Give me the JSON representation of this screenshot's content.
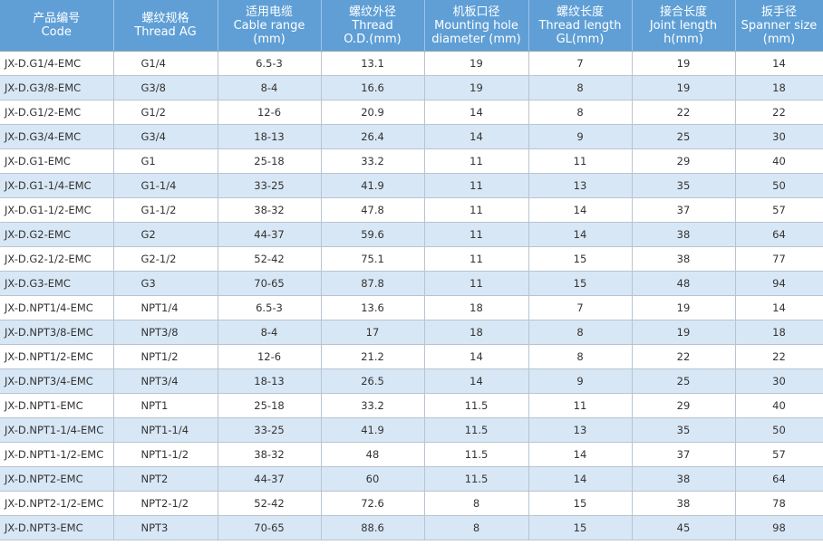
{
  "table": {
    "header": [
      [
        "产品编号",
        "Code"
      ],
      [
        "螺纹规格",
        "Thread  AG"
      ],
      [
        "适用电缆",
        "Cable range",
        "(mm)"
      ],
      [
        "螺纹外径",
        "Thread",
        "O.D.(mm)"
      ],
      [
        "机板口径",
        "Mounting hole",
        "diameter (mm)"
      ],
      [
        "螺纹长度",
        "Thread length",
        "GL(mm)"
      ],
      [
        "接合长度",
        "Joint length",
        "h(mm)"
      ],
      [
        "扳手径",
        "Spanner size",
        "(mm)"
      ]
    ],
    "rows": [
      [
        "JX-D.G1/4-EMC",
        "G1/4",
        "6.5-3",
        13.1,
        19,
        7,
        19,
        14
      ],
      [
        "JX-D.G3/8-EMC",
        "G3/8",
        "8-4",
        16.6,
        19,
        8,
        19,
        18
      ],
      [
        "JX-D.G1/2-EMC",
        "G1/2",
        "12-6",
        20.9,
        14,
        8,
        22,
        22
      ],
      [
        "JX-D.G3/4-EMC",
        "G3/4",
        "18-13",
        26.4,
        14,
        9,
        25,
        30
      ],
      [
        "JX-D.G1-EMC",
        "G1",
        "25-18",
        33.2,
        11,
        11,
        29,
        40
      ],
      [
        "JX-D.G1-1/4-EMC",
        "G1-1/4",
        "33-25",
        41.9,
        11,
        13,
        35,
        50
      ],
      [
        "JX-D.G1-1/2-EMC",
        "G1-1/2",
        "38-32",
        47.8,
        11,
        14,
        37,
        57
      ],
      [
        "JX-D.G2-EMC",
        "G2",
        "44-37",
        59.6,
        11,
        14,
        38,
        64
      ],
      [
        "JX-D.G2-1/2-EMC",
        "G2-1/2",
        "52-42",
        75.1,
        11,
        15,
        38,
        77
      ],
      [
        "JX-D.G3-EMC",
        "G3",
        "70-65",
        87.8,
        11,
        15,
        48,
        94
      ],
      [
        "JX-D.NPT1/4-EMC",
        "NPT1/4",
        "6.5-3",
        13.6,
        18,
        7,
        19,
        14
      ],
      [
        "JX-D.NPT3/8-EMC",
        "NPT3/8",
        "8-4",
        17,
        18,
        8,
        19,
        18
      ],
      [
        "JX-D.NPT1/2-EMC",
        "NPT1/2",
        "12-6",
        21.2,
        14,
        8,
        22,
        22
      ],
      [
        "JX-D.NPT3/4-EMC",
        "NPT3/4",
        "18-13",
        26.5,
        14,
        9,
        25,
        30
      ],
      [
        "JX-D.NPT1-EMC",
        "NPT1",
        "25-18",
        33.2,
        11.5,
        11,
        29,
        40
      ],
      [
        "JX-D.NPT1-1/4-EMC",
        "NPT1-1/4",
        "33-25",
        41.9,
        11.5,
        13,
        35,
        50
      ],
      [
        "JX-D.NPT1-1/2-EMC",
        "NPT1-1/2",
        "38-32",
        48,
        11.5,
        14,
        37,
        57
      ],
      [
        "JX-D.NPT2-EMC",
        "NPT2",
        "44-37",
        60,
        11.5,
        14,
        38,
        64
      ],
      [
        "JX-D.NPT2-1/2-EMC",
        "NPT2-1/2",
        "52-42",
        72.6,
        8,
        15,
        38,
        78
      ],
      [
        "JX-D.NPT3-EMC",
        "NPT3",
        "70-65",
        88.6,
        8,
        15,
        45,
        98
      ]
    ]
  }
}
